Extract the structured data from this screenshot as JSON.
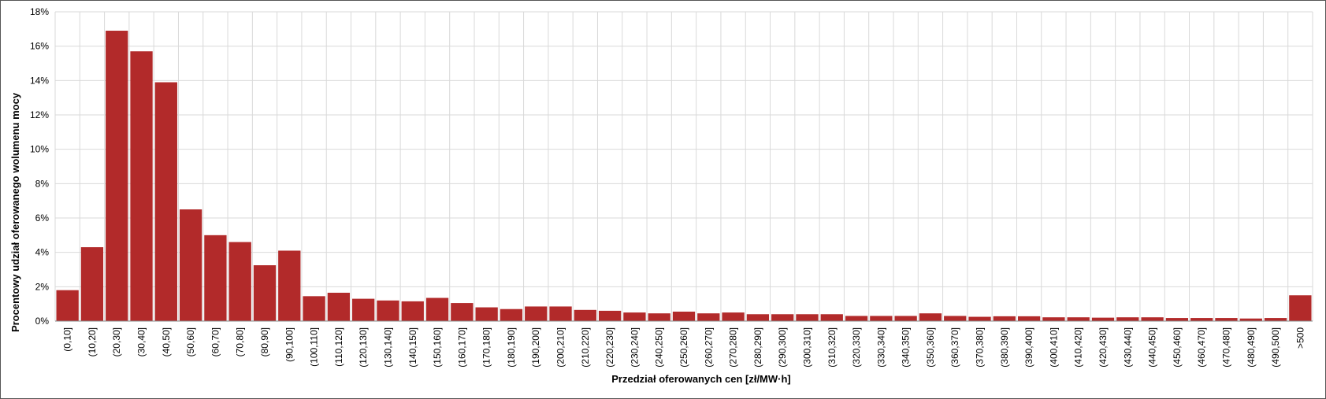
{
  "chart_data": {
    "type": "bar",
    "title": "",
    "xlabel": "Przedział oferowanych cen [zł/MW·h]",
    "ylabel": "Procentowy udział oferowanego wolumenu mocy",
    "ylim": [
      0,
      18
    ],
    "yticks": [
      "0%",
      "2%",
      "4%",
      "6%",
      "8%",
      "10%",
      "12%",
      "14%",
      "16%",
      "18%"
    ],
    "grid": true,
    "bar_color": "#b22a2a",
    "grid_color": "#d9d9d9",
    "categories": [
      "(0,10]",
      "(10,20]",
      "(20,30]",
      "(30,40]",
      "(40,50]",
      "(50,60]",
      "(60,70]",
      "(70,80]",
      "(80,90]",
      "(90,100]",
      "(100,110]",
      "(110,120]",
      "(120,130]",
      "(130,140]",
      "(140,150]",
      "(150,160]",
      "(160,170]",
      "(170,180]",
      "(180,190]",
      "(190,200]",
      "(200,210]",
      "(210,220]",
      "(220,230]",
      "(230,240]",
      "(240,250]",
      "(250,260]",
      "(260,270]",
      "(270,280]",
      "(280,290]",
      "(290,300]",
      "(300,310]",
      "(310,320]",
      "(320,330]",
      "(330,340]",
      "(340,350]",
      "(350,360]",
      "(360,370]",
      "(370,380]",
      "(380,390]",
      "(390,400]",
      "(400,410]",
      "(410,420]",
      "(420,430]",
      "(430,440]",
      "(440,450]",
      "(450,460]",
      "(460,470]",
      "(470,480]",
      "(480,490]",
      "(490,500]",
      ">500"
    ],
    "values": [
      1.8,
      4.3,
      16.9,
      15.7,
      13.9,
      6.5,
      5.0,
      4.6,
      3.25,
      4.1,
      1.45,
      1.65,
      1.3,
      1.2,
      1.15,
      1.35,
      1.05,
      0.8,
      0.7,
      0.85,
      0.85,
      0.65,
      0.6,
      0.5,
      0.45,
      0.55,
      0.45,
      0.5,
      0.4,
      0.4,
      0.4,
      0.4,
      0.3,
      0.3,
      0.3,
      0.45,
      0.3,
      0.25,
      0.28,
      0.28,
      0.22,
      0.22,
      0.2,
      0.22,
      0.22,
      0.18,
      0.18,
      0.18,
      0.15,
      0.18,
      1.5
    ]
  }
}
